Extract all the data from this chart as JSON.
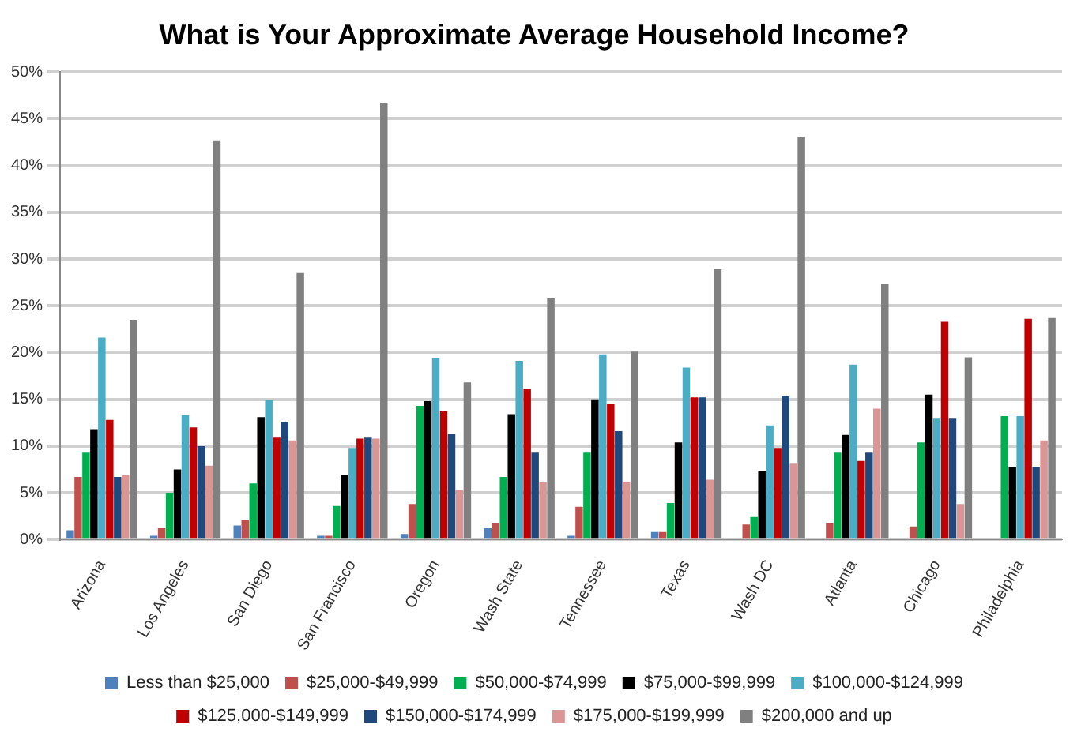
{
  "chart_data": {
    "type": "bar",
    "title": "What is Your Approximate Average Household Income?",
    "categories": [
      "Arizona",
      "Los Angeles",
      "San Diego",
      "San Francisco",
      "Oregon",
      "Wash State",
      "Tennessee",
      "Texas",
      "Wash DC",
      "Atlanta",
      "Chicago",
      "Philadelphia"
    ],
    "series": [
      {
        "name": "Less than $25,000",
        "color": "#4f81bd",
        "values": [
          1,
          0.4,
          1.5,
          0.4,
          0.6,
          1.2,
          0.4,
          0.8,
          0,
          0,
          0,
          0
        ]
      },
      {
        "name": "$25,000-$49,999",
        "color": "#c0504d",
        "values": [
          6.7,
          1.2,
          2.1,
          0.4,
          3.8,
          1.8,
          3.5,
          0.8,
          1.6,
          1.8,
          1.4,
          0
        ]
      },
      {
        "name": "$50,000-$74,999",
        "color": "#00b050",
        "values": [
          9.3,
          5,
          6,
          3.6,
          14.3,
          6.7,
          9.3,
          3.9,
          2.4,
          9.3,
          10.4,
          13.2
        ]
      },
      {
        "name": "$75,000-$99,999",
        "color": "#000000",
        "values": [
          11.8,
          7.5,
          13.1,
          6.9,
          14.8,
          13.4,
          15,
          10.4,
          7.3,
          11.2,
          15.5,
          7.8
        ]
      },
      {
        "name": "$100,000-$124,999",
        "color": "#4bacc6",
        "values": [
          21.6,
          13.3,
          14.9,
          9.8,
          19.4,
          19.1,
          19.8,
          18.4,
          12.2,
          18.7,
          13,
          13.2
        ]
      },
      {
        "name": "$125,000-$149,999",
        "color": "#c00000",
        "values": [
          12.8,
          12,
          10.9,
          10.8,
          13.7,
          16.1,
          14.5,
          15.2,
          9.8,
          8.4,
          23.3,
          23.6
        ]
      },
      {
        "name": "$150,000-$174,999",
        "color": "#1f497d",
        "values": [
          6.7,
          10,
          12.6,
          10.9,
          11.3,
          9.3,
          11.6,
          15.2,
          15.4,
          9.3,
          13,
          7.8
        ]
      },
      {
        "name": "$175,000-$199,999",
        "color": "#d99694",
        "values": [
          6.9,
          7.9,
          10.6,
          10.8,
          5.3,
          6.1,
          6.1,
          6.4,
          8.2,
          14,
          3.8,
          10.6
        ]
      },
      {
        "name": "$200,000 and up",
        "color": "#808080",
        "values": [
          23.5,
          42.7,
          28.5,
          46.7,
          16.8,
          25.8,
          20.1,
          28.9,
          43.1,
          27.3,
          19.5,
          23.7
        ]
      }
    ],
    "ylim": [
      0,
      50
    ],
    "yticks": [
      {
        "value": 0,
        "label": "0%"
      },
      {
        "value": 5,
        "label": "5%"
      },
      {
        "value": 10,
        "label": "10%"
      },
      {
        "value": 15,
        "label": "15%"
      },
      {
        "value": 20,
        "label": "20%"
      },
      {
        "value": 25,
        "label": "25%"
      },
      {
        "value": 30,
        "label": "30%"
      },
      {
        "value": 35,
        "label": "35%"
      },
      {
        "value": 40,
        "label": "40%"
      },
      {
        "value": 45,
        "label": "45%"
      },
      {
        "value": 50,
        "label": "50%"
      }
    ],
    "grid": "y",
    "legend": "bottom"
  }
}
